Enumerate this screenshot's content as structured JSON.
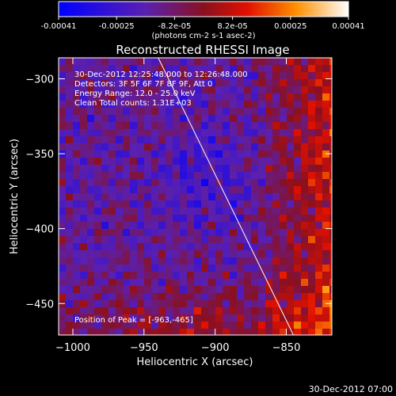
{
  "chart_data": {
    "type": "heatmap",
    "title": "Reconstructed RHESSI Image",
    "xlabel": "Heliocentric X (arcsec)",
    "ylabel": "Heliocentric Y (arcsec)",
    "xlim": [
      -1010,
      -818
    ],
    "ylim": [
      -471,
      -286
    ],
    "x_ticks": [
      -1000,
      -950,
      -900,
      -850
    ],
    "y_ticks": [
      -300,
      -350,
      -400,
      -450
    ],
    "colorbar": {
      "range": [
        -0.00041,
        0.00041
      ],
      "ticks": [
        "-0.00041",
        "-0.00025",
        "-8.2e-05",
        "8.2e-05",
        "0.00025",
        "0.00041"
      ],
      "unit_label": "(photons cm-2 s-1 asec-2)",
      "colormap": "blue-purple-red-yellow-white"
    },
    "info_lines": [
      "30-Dec-2012 12:25:48.000 to 12:26:48.000",
      "Detectors: 3F 5F 6F 7F 8F 9F, Att 0",
      "Energy Range: 12.0 - 25.0 keV",
      "Clean     Total counts: 1.31E+03"
    ],
    "peak_label": "Position of Peak = [-963,-465]",
    "peak": [
      -963,
      -465
    ],
    "limb_line": {
      "x": [
        -940,
        -845
      ],
      "y": [
        -286,
        -471
      ]
    }
  },
  "footer": {
    "timestamp": "30-Dec-2012 07:00"
  },
  "colors": {
    "background": "#000000",
    "axis": "#ffffff",
    "limb": "#ffffff"
  }
}
